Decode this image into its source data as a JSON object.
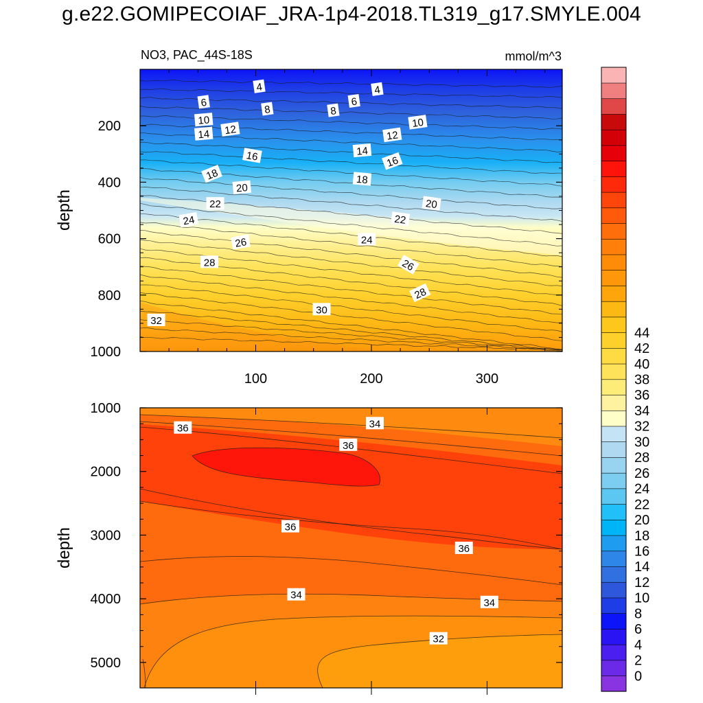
{
  "title": "g.e22.GOMIPECOIAF_JRA-1p4-2018.TL319_g17.SMYLE.004",
  "colorbar": {
    "tick_labels": [
      "0",
      "2",
      "4",
      "6",
      "8",
      "10",
      "12",
      "14",
      "16",
      "18",
      "20",
      "22",
      "24",
      "26",
      "28",
      "30",
      "32",
      "34",
      "36",
      "38",
      "40",
      "42",
      "44"
    ],
    "colors": [
      "#8a33e0",
      "#6a2ae8",
      "#4b1ff0",
      "#2a14f4",
      "#0c14f8",
      "#1e3de6",
      "#2e58dc",
      "#3070e0",
      "#2e86e8",
      "#1e9cf0",
      "#00b4f8",
      "#21c0f8",
      "#5cc8f2",
      "#7ccdf0",
      "#98d4f0",
      "#aed9f0",
      "#c4e3f4",
      "#fefec8",
      "#fef2a0",
      "#feec78",
      "#fee35a",
      "#fedb42",
      "#fed02c",
      "#fec71c",
      "#feb814",
      "#fea50c",
      "#fe980a",
      "#fe8c08",
      "#fe800a",
      "#fe6e0a",
      "#fe5a0a",
      "#fe460a",
      "#fe2a0a",
      "#fe140a",
      "#e6000a",
      "#d40008",
      "#c80a0a",
      "#e04848",
      "#f08080",
      "#fab4b4"
    ]
  },
  "chart_data": [
    {
      "type": "contour",
      "panel": "upper",
      "variable_label": "NO3, PAC_44S-18S",
      "units": "mmol/m^3",
      "ylabel": "depth",
      "xlabel": "",
      "xlim": [
        0,
        365
      ],
      "ylim": [
        1000,
        0
      ],
      "x_ticks": [
        100,
        200,
        300
      ],
      "y_ticks": [
        200,
        400,
        600,
        800,
        1000
      ],
      "contour_interval": 1,
      "contour_labels": [
        {
          "value": "4",
          "x": 103,
          "depth": 60,
          "angle": -8
        },
        {
          "value": "4",
          "x": 205,
          "depth": 70,
          "angle": -8
        },
        {
          "value": "6",
          "x": 55,
          "depth": 115,
          "angle": -8
        },
        {
          "value": "6",
          "x": 185,
          "depth": 112,
          "angle": -8
        },
        {
          "value": "8",
          "x": 110,
          "depth": 140,
          "angle": -8
        },
        {
          "value": "8",
          "x": 167,
          "depth": 145,
          "angle": -8
        },
        {
          "value": "10",
          "x": 55,
          "depth": 178,
          "angle": -5
        },
        {
          "value": "10",
          "x": 240,
          "depth": 187,
          "angle": -8
        },
        {
          "value": "12",
          "x": 78,
          "depth": 212,
          "angle": -8
        },
        {
          "value": "12",
          "x": 218,
          "depth": 232,
          "angle": -8
        },
        {
          "value": "14",
          "x": 55,
          "depth": 228,
          "angle": -5
        },
        {
          "value": "14",
          "x": 192,
          "depth": 287,
          "angle": -5
        },
        {
          "value": "16",
          "x": 97,
          "depth": 305,
          "angle": 10
        },
        {
          "value": "16",
          "x": 218,
          "depth": 325,
          "angle": -20
        },
        {
          "value": "18",
          "x": 62,
          "depth": 370,
          "angle": -22
        },
        {
          "value": "18",
          "x": 192,
          "depth": 388,
          "angle": 5
        },
        {
          "value": "20",
          "x": 88,
          "depth": 418,
          "angle": -5
        },
        {
          "value": "20",
          "x": 252,
          "depth": 475,
          "angle": 8
        },
        {
          "value": "22",
          "x": 65,
          "depth": 475,
          "angle": 0
        },
        {
          "value": "22",
          "x": 225,
          "depth": 530,
          "angle": 8
        },
        {
          "value": "24",
          "x": 42,
          "depth": 533,
          "angle": -10
        },
        {
          "value": "24",
          "x": 196,
          "depth": 602,
          "angle": 0
        },
        {
          "value": "26",
          "x": 87,
          "depth": 612,
          "angle": -10
        },
        {
          "value": "26",
          "x": 232,
          "depth": 692,
          "angle": 30
        },
        {
          "value": "28",
          "x": 60,
          "depth": 682,
          "angle": 0
        },
        {
          "value": "28",
          "x": 242,
          "depth": 792,
          "angle": -25
        },
        {
          "value": "30",
          "x": 157,
          "depth": 850,
          "angle": 0
        },
        {
          "value": "32",
          "x": 14,
          "depth": 888,
          "angle": 0
        }
      ]
    },
    {
      "type": "contour",
      "panel": "lower",
      "variable_label": "",
      "units": "mmol/m^3",
      "ylabel": "depth",
      "xlabel": "",
      "xlim": [
        0,
        365
      ],
      "ylim": [
        5400,
        1000
      ],
      "x_ticks": [
        100,
        200,
        300
      ],
      "y_ticks": [
        1000,
        2000,
        3000,
        4000,
        5000
      ],
      "contour_labels": [
        {
          "value": "36",
          "x": 37,
          "depth": 1310,
          "angle": 0
        },
        {
          "value": "34",
          "x": 203,
          "depth": 1240,
          "angle": 0
        },
        {
          "value": "36",
          "x": 180,
          "depth": 1580,
          "angle": 0
        },
        {
          "value": "36",
          "x": 130,
          "depth": 2860,
          "angle": 0
        },
        {
          "value": "36",
          "x": 280,
          "depth": 3200,
          "angle": 0
        },
        {
          "value": "34",
          "x": 135,
          "depth": 3930,
          "angle": 0
        },
        {
          "value": "34",
          "x": 302,
          "depth": 4050,
          "angle": 0
        },
        {
          "value": "32",
          "x": 258,
          "depth": 4620,
          "angle": 0
        }
      ]
    }
  ]
}
